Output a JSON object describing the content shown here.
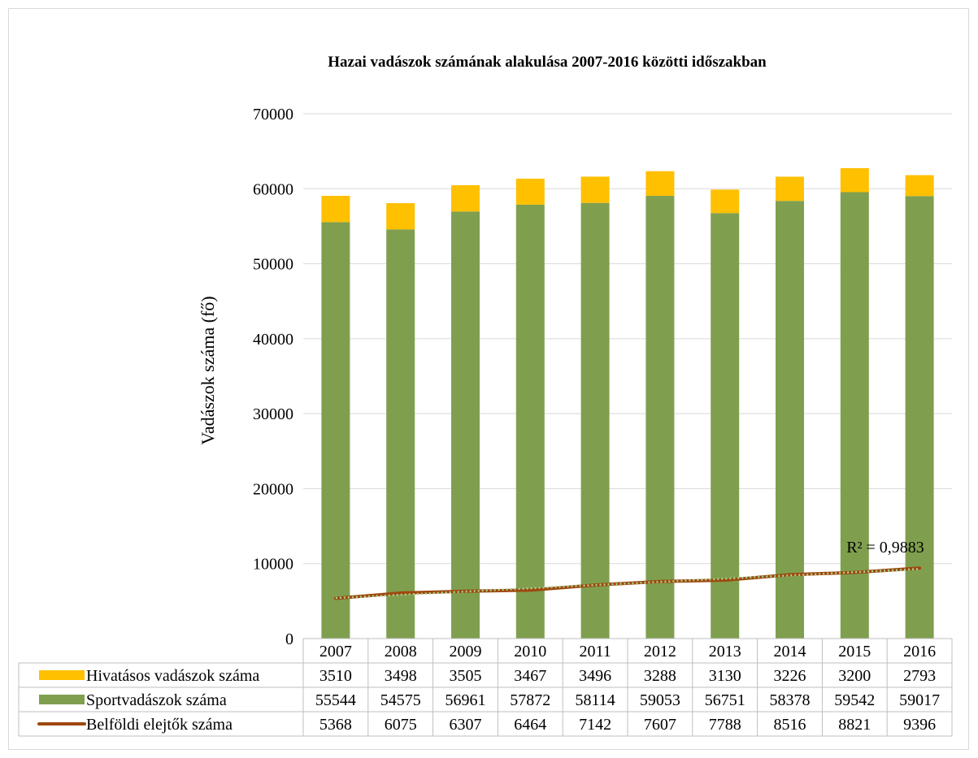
{
  "chart_data": {
    "type": "bar",
    "stacked": true,
    "title": "Hazai vadászok számának alakulása 2007-2016 közötti időszakban",
    "ylabel": "Vadászok száma (fő)",
    "xlabel": "",
    "ylim": [
      0,
      70000
    ],
    "yticks": [
      0,
      10000,
      20000,
      30000,
      40000,
      50000,
      60000,
      70000
    ],
    "grid": true,
    "categories": [
      "2007",
      "2008",
      "2009",
      "2010",
      "2011",
      "2012",
      "2013",
      "2014",
      "2015",
      "2016"
    ],
    "series": [
      {
        "name": "Hivatásos vadászok száma",
        "kind": "bar",
        "color": "#FFC000",
        "values": [
          3510,
          3498,
          3505,
          3467,
          3496,
          3288,
          3130,
          3226,
          3200,
          2793
        ]
      },
      {
        "name": "Sportvadászok száma",
        "kind": "bar",
        "color": "#7F9F4F",
        "values": [
          55544,
          54575,
          56961,
          57872,
          58114,
          59053,
          56751,
          58378,
          59542,
          59017
        ]
      },
      {
        "name": "Belföldi elejtők száma",
        "kind": "line",
        "color": "#9E480E",
        "values": [
          5368,
          6075,
          6307,
          6464,
          7142,
          7607,
          7788,
          8516,
          8821,
          9396
        ]
      }
    ],
    "trendline": {
      "series": "Belföldi elejtők száma",
      "style": "dotted",
      "color": "#A9D18E",
      "label": "R² = 0,9883"
    },
    "data_table": true
  }
}
